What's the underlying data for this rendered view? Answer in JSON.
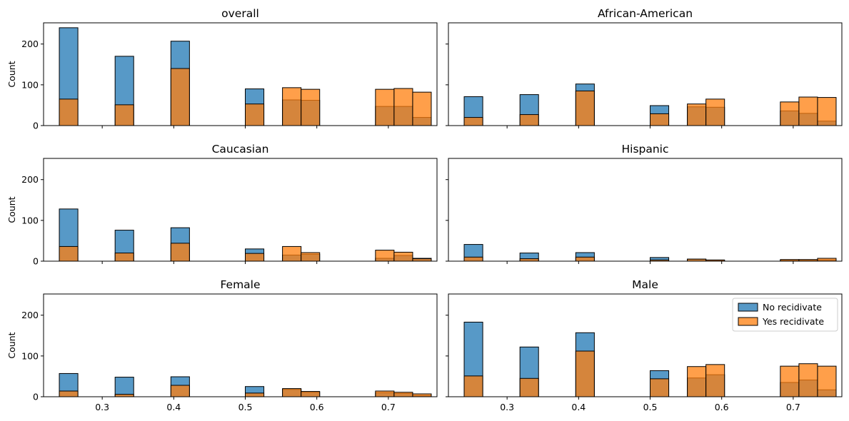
{
  "colors": {
    "no": "#1f77b4",
    "yes": "#ff7f0e"
  },
  "chart_data": {
    "type": "bar",
    "layout": "3x2 grid of histograms, shared x and y axes",
    "x_ticks": [
      0.3,
      0.4,
      0.5,
      0.6,
      0.7
    ],
    "x_tick_labels": [
      "0.3",
      "0.4",
      "0.5",
      "0.6",
      "0.7"
    ],
    "xlim": [
      0.218,
      0.768
    ],
    "y_ticks": [
      0,
      100,
      200
    ],
    "y_tick_labels": [
      "0",
      "100",
      "200"
    ],
    "ylim": [
      0,
      252
    ],
    "ylabel": "Count",
    "bin_edges": [
      0.24,
      0.266,
      0.292,
      0.318,
      0.344,
      0.37,
      0.396,
      0.422,
      0.448,
      0.474,
      0.5,
      0.526,
      0.552,
      0.578,
      0.604,
      0.63,
      0.656,
      0.682,
      0.708,
      0.734,
      0.76
    ],
    "legend": {
      "entries": [
        "No recidivate",
        "Yes recidivate"
      ],
      "panel": 5,
      "placement": "top-right"
    },
    "panels": [
      {
        "title": "overall",
        "series": [
          {
            "name": "No recidivate",
            "values": [
              240,
              0,
              0,
              170,
              0,
              0,
              207,
              0,
              0,
              0,
              90,
              0,
              63,
              62,
              0,
              0,
              0,
              47,
              47,
              20
            ]
          },
          {
            "name": "Yes recidivate",
            "values": [
              65,
              0,
              0,
              51,
              0,
              0,
              140,
              0,
              0,
              0,
              53,
              0,
              93,
              89,
              0,
              0,
              0,
              89,
              91,
              82
            ]
          }
        ]
      },
      {
        "title": "African-American",
        "series": [
          {
            "name": "No recidivate",
            "values": [
              71,
              0,
              0,
              76,
              0,
              0,
              102,
              0,
              0,
              0,
              49,
              0,
              46,
              45,
              0,
              0,
              0,
              36,
              30,
              11
            ]
          },
          {
            "name": "Yes recidivate",
            "values": [
              20,
              0,
              0,
              27,
              0,
              0,
              85,
              0,
              0,
              0,
              29,
              0,
              53,
              65,
              0,
              0,
              0,
              58,
              70,
              69
            ]
          }
        ]
      },
      {
        "title": "Caucasian",
        "series": [
          {
            "name": "No recidivate",
            "values": [
              128,
              0,
              0,
              76,
              0,
              0,
              82,
              0,
              0,
              0,
              30,
              0,
              15,
              17,
              0,
              0,
              0,
              7,
              14,
              7
            ]
          },
          {
            "name": "Yes recidivate",
            "values": [
              36,
              0,
              0,
              20,
              0,
              0,
              44,
              0,
              0,
              0,
              19,
              0,
              36,
              21,
              0,
              0,
              0,
              27,
              22,
              6
            ]
          }
        ]
      },
      {
        "title": "Hispanic",
        "series": [
          {
            "name": "No recidivate",
            "values": [
              41,
              0,
              0,
              20,
              0,
              0,
              21,
              0,
              0,
              0,
              9,
              0,
              5,
              2,
              0,
              0,
              0,
              2,
              2,
              3
            ]
          },
          {
            "name": "Yes recidivate",
            "values": [
              10,
              0,
              0,
              6,
              0,
              0,
              10,
              0,
              0,
              0,
              3,
              0,
              5,
              3,
              0,
              0,
              0,
              4,
              4,
              7
            ]
          }
        ]
      },
      {
        "title": "Female",
        "series": [
          {
            "name": "No recidivate",
            "values": [
              57,
              0,
              0,
              48,
              0,
              0,
              49,
              0,
              0,
              0,
              25,
              0,
              18,
              11,
              0,
              0,
              0,
              10,
              8,
              3
            ]
          },
          {
            "name": "Yes recidivate",
            "values": [
              14,
              0,
              0,
              6,
              0,
              0,
              28,
              0,
              0,
              0,
              9,
              0,
              20,
              13,
              0,
              0,
              0,
              14,
              11,
              7
            ]
          }
        ]
      },
      {
        "title": "Male",
        "series": [
          {
            "name": "No recidivate",
            "values": [
              183,
              0,
              0,
              122,
              0,
              0,
              157,
              0,
              0,
              0,
              64,
              0,
              46,
              54,
              0,
              0,
              0,
              35,
              41,
              17
            ]
          },
          {
            "name": "Yes recidivate",
            "values": [
              51,
              0,
              0,
              45,
              0,
              0,
              112,
              0,
              0,
              0,
              44,
              0,
              74,
              79,
              0,
              0,
              0,
              75,
              81,
              75
            ]
          }
        ]
      }
    ]
  }
}
